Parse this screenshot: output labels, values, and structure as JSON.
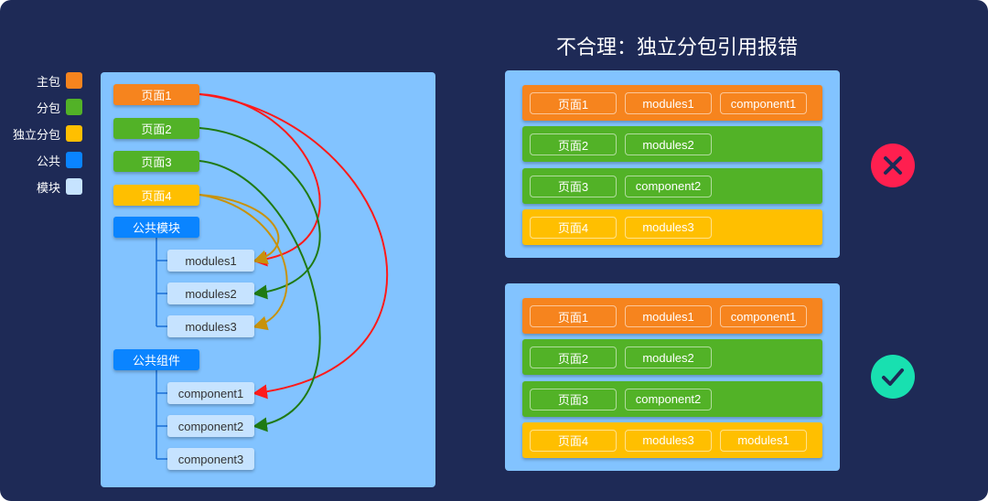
{
  "colors": {
    "background": "#1e2a56",
    "panel": "#82c3ff",
    "main": "#f6841e",
    "sub": "#52b227",
    "independent": "#ffbf00",
    "common": "#0a84ff",
    "module": "#c6e3ff",
    "error": "#ff1f4f",
    "ok": "#18e0b0"
  },
  "legend": [
    {
      "label": "主包",
      "color": "#f6841e"
    },
    {
      "label": "分包",
      "color": "#52b227"
    },
    {
      "label": "独立分包",
      "color": "#ffbf00"
    },
    {
      "label": "公共",
      "color": "#0a84ff"
    },
    {
      "label": "模块",
      "color": "#c6e3ff"
    }
  ],
  "diagram": {
    "pages": [
      {
        "label": "页面1",
        "color": "#f6841e"
      },
      {
        "label": "页面2",
        "color": "#52b227"
      },
      {
        "label": "页面3",
        "color": "#52b227"
      },
      {
        "label": "页面4",
        "color": "#ffbf00"
      }
    ],
    "common_modules": {
      "label": "公共模块",
      "items": [
        "modules1",
        "modules2",
        "modules3"
      ]
    },
    "common_components": {
      "label": "公共组件",
      "items": [
        "component1",
        "component2",
        "component3"
      ]
    },
    "edges": [
      {
        "from": "页面1",
        "to": "modules1",
        "color": "#ff1a1a"
      },
      {
        "from": "页面1",
        "to": "component1",
        "color": "#ff1a1a"
      },
      {
        "from": "页面2",
        "to": "modules2",
        "color": "#1f7a12"
      },
      {
        "from": "页面3",
        "to": "component2",
        "color": "#1f7a12"
      },
      {
        "from": "页面4",
        "to": "modules1",
        "color": "#c8920a"
      },
      {
        "from": "页面4",
        "to": "modules3",
        "color": "#c8920a"
      }
    ]
  },
  "title": "不合理：独立分包引用报错",
  "bad": {
    "status": "x-icon",
    "rows": [
      {
        "color": "#f6841e",
        "chips": [
          "页面1",
          "modules1",
          "component1"
        ]
      },
      {
        "color": "#52b227",
        "chips": [
          "页面2",
          "modules2"
        ]
      },
      {
        "color": "#52b227",
        "chips": [
          "页面3",
          "component2"
        ]
      },
      {
        "color": "#ffbf00",
        "chips": [
          "页面4",
          "modules3"
        ]
      }
    ]
  },
  "good": {
    "status": "check-icon",
    "rows": [
      {
        "color": "#f6841e",
        "chips": [
          "页面1",
          "modules1",
          "component1"
        ]
      },
      {
        "color": "#52b227",
        "chips": [
          "页面2",
          "modules2"
        ]
      },
      {
        "color": "#52b227",
        "chips": [
          "页面3",
          "component2"
        ]
      },
      {
        "color": "#ffbf00",
        "chips": [
          "页面4",
          "modules3",
          "modules1"
        ]
      }
    ]
  }
}
